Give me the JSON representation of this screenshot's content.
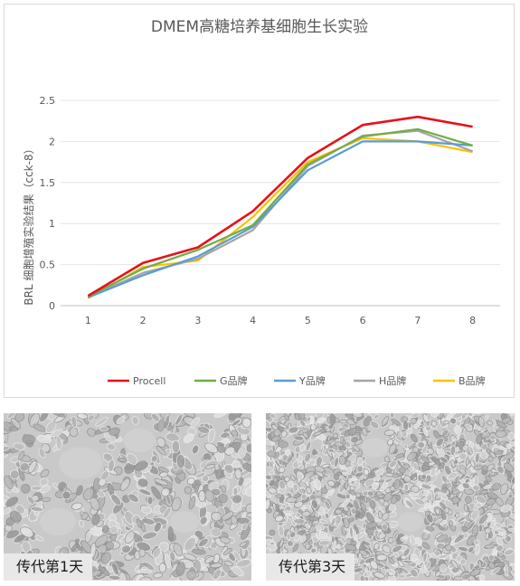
{
  "chart_data": {
    "type": "line",
    "title": "DMEM高糖培养基细胞生长实验",
    "xlabel": "",
    "ylabel": "BRL 细胞增殖实验结果（cck-8）",
    "categories": [
      "1",
      "2",
      "3",
      "4",
      "5",
      "6",
      "7",
      "8"
    ],
    "ylim": [
      0,
      2.5
    ],
    "yticks": [
      "0",
      "0.5",
      "1",
      "1.5",
      "2",
      "2.5"
    ],
    "grid": true,
    "legend_position": "bottom",
    "series": [
      {
        "name": "Procell",
        "color": "#e8101a",
        "values": [
          0.12,
          0.52,
          0.71,
          1.15,
          1.8,
          2.2,
          2.3,
          2.18
        ]
      },
      {
        "name": "G品牌",
        "color": "#70ad47",
        "values": [
          0.11,
          0.45,
          0.68,
          0.98,
          1.72,
          2.06,
          2.15,
          1.95
        ]
      },
      {
        "name": "Y品牌",
        "color": "#5b9bd5",
        "values": [
          0.1,
          0.37,
          0.6,
          0.96,
          1.65,
          2.0,
          2.0,
          1.95
        ]
      },
      {
        "name": "H品牌",
        "color": "#a5a5a5",
        "values": [
          0.1,
          0.4,
          0.57,
          0.92,
          1.7,
          2.07,
          2.13,
          1.88
        ]
      },
      {
        "name": "B品牌",
        "color": "#ffc000",
        "values": [
          0.09,
          0.47,
          0.55,
          1.08,
          1.75,
          2.04,
          2.0,
          1.87
        ]
      }
    ]
  },
  "photos": [
    {
      "caption": "传代第1天"
    },
    {
      "caption": "传代第3天"
    }
  ]
}
